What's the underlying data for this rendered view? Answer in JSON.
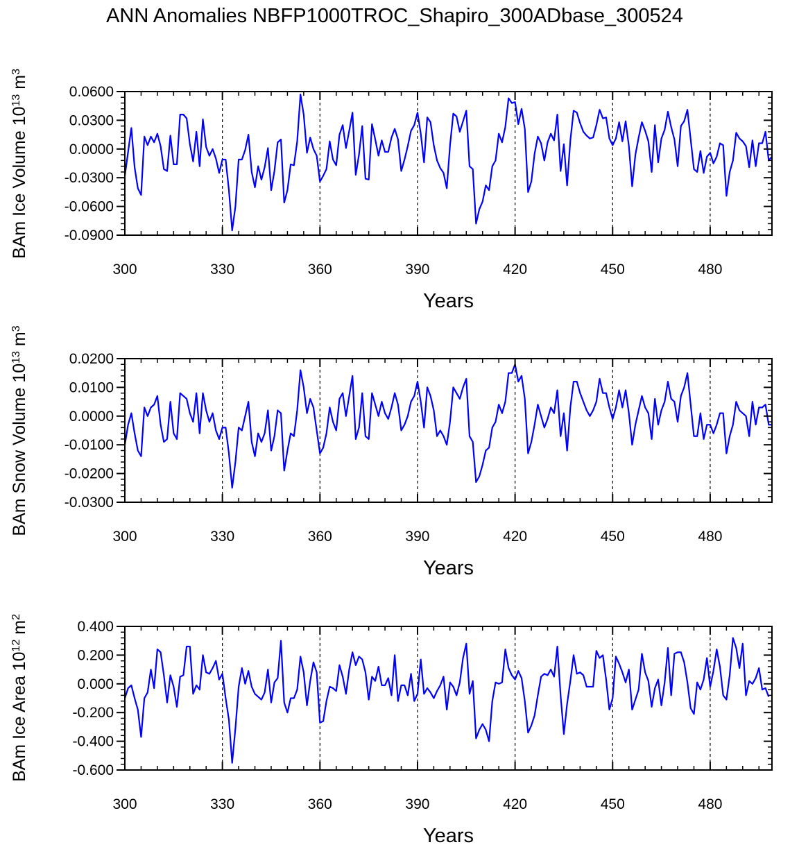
{
  "title": "ANN Anomalies NBFP1000TROC_Shapiro_300ADbase_300524",
  "colors": {
    "series": "#0000ff",
    "axis": "#000000",
    "grid": "#000000"
  },
  "chart_data": [
    {
      "type": "line",
      "ylabel": {
        "prefix": "BAm Ice Volume 10",
        "exp": "13",
        "unit": " m",
        "unit_exp": "3"
      },
      "xlabel": "Years",
      "xlim": [
        300,
        499
      ],
      "ylim": [
        -0.09,
        0.06
      ],
      "xticks": [
        300,
        330,
        360,
        390,
        420,
        450,
        480
      ],
      "xtick_labels": [
        "300",
        "330",
        "360",
        "390",
        "420",
        "450",
        "480"
      ],
      "yticks": [
        0.06,
        0.03,
        0.0,
        -0.03,
        -0.06,
        -0.09
      ],
      "ytick_labels": [
        "0.0600",
        "0.0300",
        "0.0000",
        "-0.0300",
        "-0.0600",
        "-0.0900"
      ],
      "yminor_step": 0.006,
      "grid_x": [
        330,
        360,
        390,
        420,
        450,
        480
      ],
      "x_start": 300,
      "values": [
        -0.028,
        -0.003,
        0.022,
        -0.019,
        -0.041,
        -0.048,
        0.013,
        0.004,
        0.013,
        0.007,
        0.016,
        0.003,
        -0.021,
        -0.023,
        0.014,
        -0.016,
        -0.016,
        0.036,
        0.036,
        0.032,
        0.005,
        -0.013,
        0.018,
        -0.018,
        0.031,
        0.002,
        -0.007,
        0.0,
        -0.01,
        -0.025,
        -0.011,
        -0.011,
        -0.043,
        -0.085,
        -0.06,
        -0.011,
        -0.011,
        -0.001,
        0.015,
        -0.024,
        -0.04,
        -0.018,
        -0.032,
        -0.019,
        0.001,
        -0.043,
        -0.023,
        0.007,
        0.01,
        -0.056,
        -0.043,
        -0.016,
        -0.017,
        0.008,
        0.057,
        0.036,
        -0.004,
        0.012,
        0.0,
        -0.007,
        -0.034,
        -0.028,
        -0.021,
        0.008,
        -0.011,
        -0.017,
        0.015,
        0.025,
        0.001,
        0.019,
        0.038,
        -0.027,
        -0.006,
        0.024,
        -0.031,
        -0.032,
        0.026,
        0.01,
        -0.007,
        0.009,
        -0.003,
        -0.003,
        0.012,
        0.021,
        0.01,
        -0.023,
        -0.011,
        0.003,
        0.019,
        0.025,
        0.038,
        0.016,
        -0.014,
        0.033,
        0.028,
        0.004,
        -0.012,
        -0.02,
        -0.025,
        -0.041,
        0.004,
        0.037,
        0.034,
        0.018,
        0.029,
        0.04,
        -0.018,
        -0.021,
        -0.078,
        -0.063,
        -0.055,
        -0.038,
        -0.043,
        -0.018,
        -0.012,
        0.016,
        0.007,
        0.023,
        0.053,
        0.048,
        0.049,
        0.026,
        0.042,
        0.021,
        -0.045,
        -0.034,
        -0.005,
        0.013,
        0.006,
        -0.012,
        0.007,
        0.016,
        0.009,
        0.036,
        -0.023,
        0.005,
        -0.038,
        0.009,
        0.04,
        0.038,
        0.027,
        0.018,
        0.014,
        0.011,
        0.012,
        0.025,
        0.041,
        0.032,
        0.033,
        0.011,
        0.004,
        0.011,
        0.028,
        0.008,
        0.029,
        0.003,
        -0.039,
        -0.006,
        0.012,
        0.028,
        0.019,
        0.008,
        -0.024,
        0.025,
        -0.014,
        0.011,
        0.02,
        0.039,
        0.023,
        0.01,
        -0.018,
        0.024,
        0.029,
        0.041,
        0.01,
        -0.021,
        -0.024,
        -0.002,
        -0.025,
        -0.008,
        -0.004,
        -0.015,
        -0.008,
        0.006,
        0.004,
        -0.049,
        -0.024,
        -0.012,
        0.017,
        0.011,
        0.008,
        0.003,
        -0.019,
        0.009,
        -0.018,
        0.006,
        0.006,
        0.018,
        -0.012,
        -0.008
      ]
    },
    {
      "type": "line",
      "ylabel": {
        "prefix": "BAm Snow Volume 10",
        "exp": "13",
        "unit": " m",
        "unit_exp": "3"
      },
      "xlabel": "Years",
      "xlim": [
        300,
        499
      ],
      "ylim": [
        -0.03,
        0.02
      ],
      "xticks": [
        300,
        330,
        360,
        390,
        420,
        450,
        480
      ],
      "xtick_labels": [
        "300",
        "330",
        "360",
        "390",
        "420",
        "450",
        "480"
      ],
      "yticks": [
        0.02,
        0.01,
        0.0,
        -0.01,
        -0.02,
        -0.03
      ],
      "ytick_labels": [
        "0.0200",
        "0.0100",
        "0.0000",
        "-0.0100",
        "-0.0200",
        "-0.0300"
      ],
      "yminor_step": 0.002,
      "grid_x": [
        330,
        360,
        390,
        420,
        450,
        480
      ],
      "x_start": 300,
      "values": [
        -0.01,
        -0.003,
        0.001,
        -0.006,
        -0.012,
        -0.014,
        0.003,
        0.0,
        0.003,
        0.004,
        0.007,
        -0.003,
        -0.009,
        -0.008,
        0.005,
        -0.006,
        -0.008,
        0.008,
        0.007,
        0.006,
        0.001,
        -0.002,
        0.008,
        -0.006,
        0.008,
        0.002,
        -0.002,
        0.001,
        -0.005,
        -0.008,
        -0.004,
        -0.004,
        -0.013,
        -0.025,
        -0.016,
        -0.004,
        -0.005,
        0.0,
        0.005,
        -0.009,
        -0.014,
        -0.006,
        -0.009,
        -0.006,
        0.002,
        -0.012,
        -0.007,
        0.002,
        0.001,
        -0.019,
        -0.012,
        -0.006,
        -0.007,
        0.002,
        0.016,
        0.01,
        0.001,
        0.006,
        0.003,
        -0.005,
        -0.013,
        -0.011,
        -0.006,
        0.003,
        -0.002,
        -0.005,
        0.006,
        0.008,
        0.0,
        0.007,
        0.014,
        -0.008,
        -0.004,
        0.008,
        -0.007,
        -0.008,
        0.008,
        0.004,
        0.0,
        0.005,
        0.001,
        -0.001,
        0.003,
        0.008,
        0.004,
        -0.005,
        -0.003,
        0.0,
        0.005,
        0.007,
        0.012,
        0.005,
        -0.004,
        0.01,
        0.007,
        0.002,
        -0.007,
        -0.005,
        -0.007,
        -0.01,
        -0.002,
        0.01,
        0.008,
        0.006,
        0.01,
        0.013,
        -0.007,
        -0.009,
        -0.023,
        -0.021,
        -0.017,
        -0.012,
        -0.011,
        -0.004,
        -0.002,
        0.004,
        0.001,
        0.005,
        0.015,
        0.015,
        0.018,
        0.012,
        0.014,
        0.006,
        -0.013,
        -0.009,
        -0.003,
        0.004,
        0.0,
        -0.004,
        -0.001,
        0.003,
        0.001,
        0.009,
        -0.007,
        0.001,
        -0.012,
        0.003,
        0.012,
        0.012,
        0.008,
        0.005,
        0.002,
        0.0,
        0.002,
        0.005,
        0.013,
        0.008,
        0.008,
        0.003,
        -0.001,
        0.003,
        0.009,
        0.003,
        0.009,
        0.001,
        -0.01,
        -0.003,
        0.002,
        0.007,
        0.003,
        0.001,
        -0.008,
        0.006,
        -0.003,
        0.002,
        0.005,
        0.012,
        0.006,
        0.005,
        -0.002,
        0.007,
        0.01,
        0.015,
        0.004,
        -0.007,
        -0.007,
        0.001,
        -0.008,
        -0.003,
        -0.003,
        -0.006,
        -0.003,
        0.001,
        0.001,
        -0.013,
        -0.007,
        -0.003,
        0.005,
        0.002,
        0.001,
        0.0,
        -0.007,
        0.005,
        -0.003,
        0.003,
        0.003,
        0.004,
        -0.003,
        -0.003
      ]
    },
    {
      "type": "line",
      "ylabel": {
        "prefix": "BAm Ice Area 10",
        "exp": "12",
        "unit": " m",
        "unit_exp": "2"
      },
      "xlabel": "Years",
      "xlim": [
        300,
        499
      ],
      "ylim": [
        -0.6,
        0.4
      ],
      "xticks": [
        300,
        330,
        360,
        390,
        420,
        450,
        480
      ],
      "xtick_labels": [
        "300",
        "330",
        "360",
        "390",
        "420",
        "450",
        "480"
      ],
      "yticks": [
        0.4,
        0.2,
        0.0,
        -0.2,
        -0.4,
        -0.6
      ],
      "ytick_labels": [
        "0.400",
        "0.200",
        "0.000",
        "-0.200",
        "-0.400",
        "-0.600"
      ],
      "yminor_step": 0.04,
      "grid_x": [
        330,
        360,
        390,
        420,
        450,
        480
      ],
      "x_start": 300,
      "values": [
        -0.1,
        -0.03,
        -0.01,
        -0.1,
        -0.18,
        -0.37,
        -0.1,
        -0.06,
        0.1,
        -0.03,
        0.24,
        0.22,
        0.06,
        -0.13,
        0.06,
        -0.02,
        -0.16,
        0.05,
        0.06,
        0.26,
        0.26,
        -0.07,
        -0.01,
        -0.04,
        0.2,
        0.08,
        0.07,
        0.11,
        0.16,
        0.03,
        0.07,
        -0.1,
        -0.25,
        -0.55,
        -0.31,
        -0.02,
        0.11,
        0.0,
        0.09,
        -0.02,
        -0.07,
        -0.09,
        -0.11,
        -0.06,
        0.1,
        -0.13,
        0.01,
        0.04,
        0.3,
        -0.13,
        -0.2,
        -0.1,
        -0.1,
        -0.04,
        0.19,
        0.08,
        -0.15,
        0.02,
        0.15,
        0.08,
        -0.27,
        -0.26,
        -0.12,
        -0.02,
        -0.03,
        -0.05,
        0.13,
        0.05,
        -0.07,
        0.1,
        0.22,
        0.13,
        0.19,
        0.17,
        0.08,
        -0.11,
        0.05,
        0.02,
        0.12,
        -0.01,
        -0.01,
        0.04,
        -0.08,
        0.2,
        -0.12,
        -0.01,
        -0.01,
        -0.08,
        0.07,
        -0.12,
        -0.07,
        0.17,
        -0.07,
        -0.03,
        -0.06,
        -0.1,
        -0.05,
        -0.01,
        0.05,
        -0.18,
        0.01,
        -0.02,
        -0.08,
        0.01,
        0.18,
        0.28,
        -0.07,
        0.02,
        -0.38,
        -0.32,
        -0.28,
        -0.32,
        -0.4,
        -0.12,
        0.01,
        0.0,
        0.01,
        0.24,
        0.11,
        0.06,
        0.03,
        0.09,
        0.04,
        -0.12,
        -0.34,
        -0.29,
        -0.22,
        -0.08,
        0.05,
        0.07,
        0.06,
        0.1,
        0.05,
        0.26,
        -0.08,
        -0.35,
        -0.14,
        0.02,
        0.2,
        0.07,
        0.08,
        0.06,
        -0.02,
        -0.02,
        -0.02,
        0.23,
        0.18,
        0.2,
        0.03,
        -0.18,
        -0.1,
        0.19,
        0.14,
        0.08,
        0.01,
        0.1,
        -0.18,
        -0.11,
        -0.04,
        0.21,
        0.08,
        0.02,
        -0.16,
        -0.03,
        0.03,
        -0.15,
        0.01,
        0.25,
        -0.08,
        0.21,
        0.22,
        0.22,
        0.15,
        0.01,
        -0.17,
        -0.21,
        0.01,
        -0.04,
        0.03,
        0.18,
        -0.02,
        0.09,
        0.24,
        0.12,
        -0.08,
        -0.11,
        0.06,
        0.32,
        0.25,
        0.11,
        0.28,
        -0.08,
        0.02,
        0.0,
        0.04,
        0.11,
        -0.04,
        -0.03,
        -0.09
      ]
    }
  ]
}
